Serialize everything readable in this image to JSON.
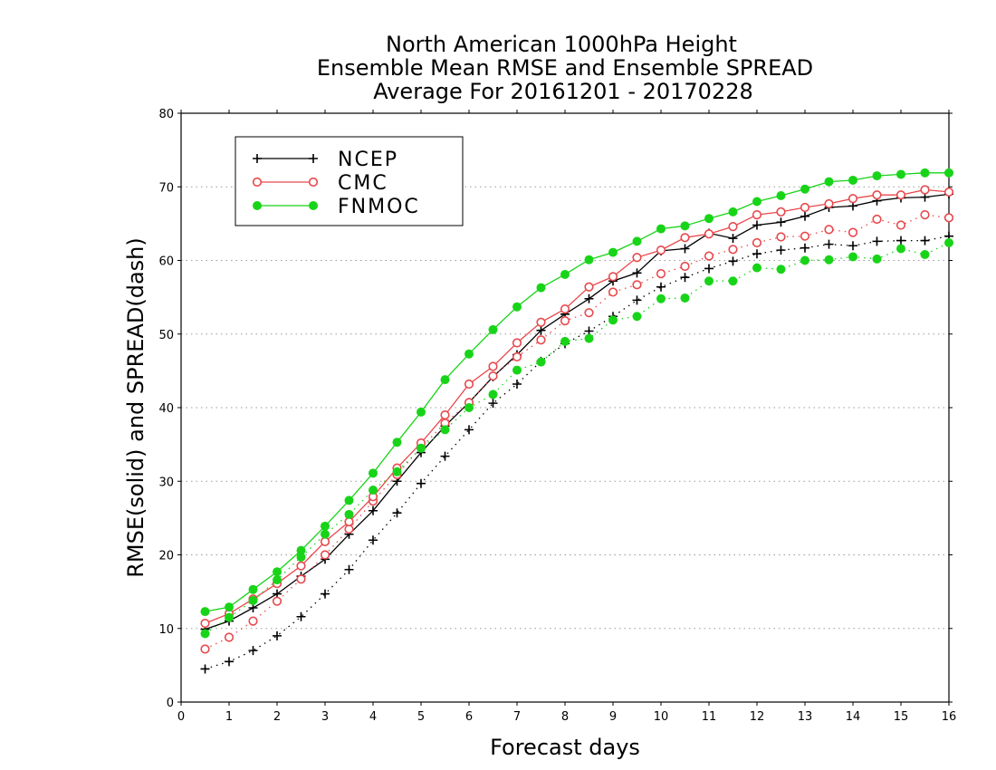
{
  "chart_data": {
    "type": "line",
    "title_lines": [
      "North American 1000hPa Height",
      "Ensemble Mean RMSE and Ensemble SPREAD",
      "Average For 20161201 - 20170228"
    ],
    "xlabel": "Forecast days",
    "ylabel": "RMSE(solid) and SPREAD(dash)",
    "xlim": [
      0,
      16
    ],
    "ylim": [
      0,
      80
    ],
    "x_ticks": [
      "0",
      "1",
      "2",
      "3",
      "4",
      "5",
      "6",
      "7",
      "8",
      "9",
      "10",
      "11",
      "12",
      "13",
      "14",
      "15",
      "16"
    ],
    "y_ticks": [
      "0",
      "10",
      "20",
      "30",
      "40",
      "50",
      "60",
      "70",
      "80"
    ],
    "grid": "horizontal dotted",
    "legend_position": "top-left",
    "x": [
      0.5,
      1,
      1.5,
      2,
      2.5,
      3,
      3.5,
      4,
      4.5,
      5,
      5.5,
      6,
      6.5,
      7,
      7.5,
      8,
      8.5,
      9,
      9.5,
      10,
      10.5,
      11,
      11.5,
      12,
      12.5,
      13,
      13.5,
      14,
      14.5,
      15,
      15.5,
      16
    ],
    "series": [
      {
        "name": "NCEP",
        "color": "#000000",
        "marker": "plus",
        "rmse": [
          9.9,
          11.0,
          12.8,
          14.7,
          17.1,
          19.4,
          22.8,
          26.0,
          30.0,
          33.9,
          37.5,
          40.7,
          44.2,
          47.2,
          50.5,
          52.7,
          54.8,
          57.2,
          58.3,
          61.3,
          61.6,
          63.7,
          63.0,
          64.8,
          65.2,
          66.0,
          67.2,
          67.4,
          68.1,
          68.5,
          68.6,
          69.0
        ],
        "spread": [
          4.5,
          5.5,
          7.0,
          9.0,
          11.6,
          14.7,
          18.0,
          22.0,
          25.7,
          29.7,
          33.4,
          37.0,
          40.6,
          43.2,
          46.3,
          48.7,
          50.4,
          52.4,
          54.6,
          56.4,
          57.7,
          58.9,
          59.9,
          60.9,
          61.4,
          61.7,
          62.2,
          62.0,
          62.6,
          62.7,
          62.7,
          63.3
        ]
      },
      {
        "name": "CMC",
        "color": "#e8484c",
        "marker": "open-circle",
        "rmse": [
          10.7,
          12.0,
          14.0,
          16.1,
          18.5,
          21.8,
          24.5,
          27.9,
          31.8,
          35.2,
          39.0,
          43.2,
          45.6,
          48.8,
          51.6,
          53.4,
          56.4,
          57.8,
          60.4,
          61.4,
          63.1,
          63.6,
          64.6,
          66.2,
          66.6,
          67.2,
          67.7,
          68.4,
          68.9,
          68.9,
          69.6,
          69.3
        ],
        "spread": [
          7.2,
          8.8,
          11.0,
          13.7,
          16.7,
          20.0,
          23.5,
          27.3,
          30.9,
          34.6,
          37.9,
          40.7,
          44.3,
          46.9,
          49.2,
          51.8,
          52.9,
          55.7,
          56.7,
          58.2,
          59.2,
          60.6,
          61.5,
          62.4,
          63.2,
          63.3,
          64.2,
          63.8,
          65.6,
          64.8,
          66.2,
          65.8
        ]
      },
      {
        "name": "FNMOC",
        "color": "#18d418",
        "marker": "filled-circle",
        "rmse": [
          12.3,
          12.9,
          15.3,
          17.7,
          20.6,
          23.9,
          27.4,
          31.1,
          35.3,
          39.4,
          43.8,
          47.3,
          50.6,
          53.7,
          56.3,
          58.1,
          60.1,
          61.1,
          62.6,
          64.3,
          64.7,
          65.7,
          66.6,
          68.0,
          68.8,
          69.7,
          70.7,
          70.9,
          71.5,
          71.7,
          71.9,
          71.9
        ],
        "spread": [
          9.3,
          11.5,
          13.8,
          16.6,
          19.7,
          22.8,
          25.5,
          28.8,
          31.3,
          34.5,
          37.0,
          40.0,
          41.8,
          45.1,
          46.2,
          49.0,
          49.4,
          51.9,
          52.4,
          54.8,
          54.9,
          57.2,
          57.2,
          59.0,
          58.8,
          60.0,
          60.1,
          60.5,
          60.2,
          61.6,
          60.8,
          62.4
        ]
      }
    ]
  }
}
